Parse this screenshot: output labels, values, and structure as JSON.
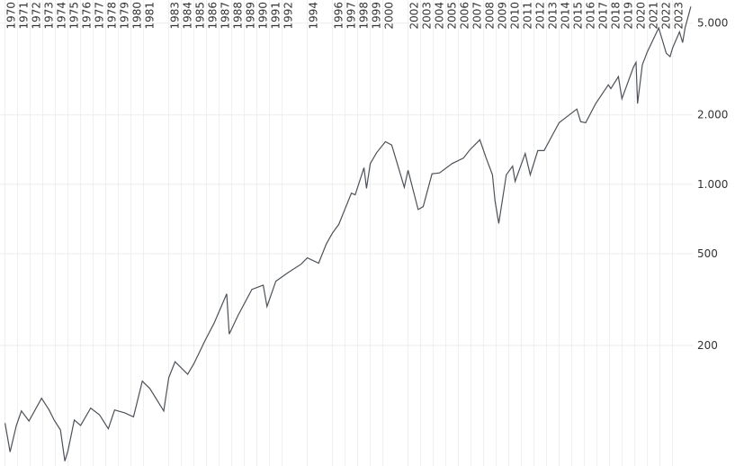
{
  "chart_data": {
    "type": "line",
    "log_y": true,
    "grid": true,
    "color": "#4d5259",
    "x": [
      1970.0,
      1970.4,
      1970.9,
      1971.3,
      1971.9,
      1972.9,
      1973.5,
      1973.9,
      1974.4,
      1974.75,
      1975.0,
      1975.5,
      1976.0,
      1976.8,
      1977.5,
      1978.2,
      1978.7,
      1979.5,
      1980.2,
      1980.9,
      1981.5,
      1982.6,
      1983.0,
      1983.5,
      1984.5,
      1985.0,
      1985.9,
      1986.6,
      1987.6,
      1987.8,
      1988.5,
      1989.6,
      1990.5,
      1990.8,
      1991.5,
      1992.5,
      1993.5,
      1994.0,
      1994.9,
      1995.5,
      1996.0,
      1996.5,
      1997.5,
      1997.8,
      1998.5,
      1998.7,
      1999.0,
      1999.5,
      2000.2,
      2000.7,
      2001.2,
      2001.7,
      2002.0,
      2002.5,
      2002.8,
      2003.2,
      2003.9,
      2004.5,
      2005.5,
      2006.4,
      2006.9,
      2007.7,
      2008.2,
      2008.7,
      2008.9,
      2009.2,
      2009.8,
      2010.3,
      2010.5,
      2011.3,
      2011.7,
      2012.3,
      2012.8,
      2013.5,
      2013.99,
      2014.8,
      2015.4,
      2015.7,
      2016.1,
      2016.9,
      2017.9,
      2018.1,
      2018.7,
      2018.98,
      2019.9,
      2020.1,
      2020.22,
      2020.6,
      2020.99,
      2021.9,
      2022.5,
      2022.8,
      2023.0,
      2023.55,
      2023.8,
      2023.99,
      2024.2,
      2024.45
    ],
    "values": [
      92,
      69,
      90,
      104,
      94,
      118,
      105,
      95,
      86,
      63,
      70,
      95,
      90,
      107,
      100,
      87,
      105,
      102,
      98,
      140,
      130,
      104,
      145,
      170,
      150,
      167,
      211,
      250,
      335,
      224,
      270,
      350,
      365,
      295,
      380,
      415,
      450,
      480,
      455,
      550,
      615,
      670,
      915,
      900,
      1180,
      960,
      1230,
      1370,
      1530,
      1480,
      1200,
      970,
      1150,
      900,
      777,
      800,
      1110,
      1120,
      1230,
      1300,
      1410,
      1560,
      1300,
      1100,
      850,
      676,
      1100,
      1200,
      1030,
      1360,
      1100,
      1400,
      1400,
      1650,
      1850,
      2000,
      2120,
      1870,
      1850,
      2240,
      2700,
      2600,
      2930,
      2350,
      3230,
      3380,
      2240,
      3300,
      3750,
      4770,
      3700,
      3580,
      3900,
      4580,
      4120,
      4770,
      5250,
      5900
    ],
    "xlim": [
      1969.6,
      2024.6
    ],
    "xticks": [
      1970,
      1971,
      1972,
      1973,
      1974,
      1975,
      1976,
      1977,
      1978,
      1979,
      1980,
      1981,
      1983,
      1984,
      1985,
      1986,
      1987,
      1988,
      1989,
      1990,
      1991,
      1992,
      1994,
      1996,
      1997,
      1998,
      1999,
      2000,
      2002,
      2003,
      2004,
      2005,
      2006,
      2007,
      2008,
      2009,
      2010,
      2011,
      2012,
      2013,
      2014,
      2015,
      2016,
      2017,
      2018,
      2019,
      2020,
      2021,
      2022,
      2023
    ],
    "ylim": [
      60,
      6300
    ],
    "yticks": [
      200,
      500,
      {
        "value": 1000,
        "label": "1.000"
      },
      {
        "value": 2000,
        "label": "2.000"
      },
      {
        "value": 5000,
        "label": "5.000"
      }
    ]
  }
}
